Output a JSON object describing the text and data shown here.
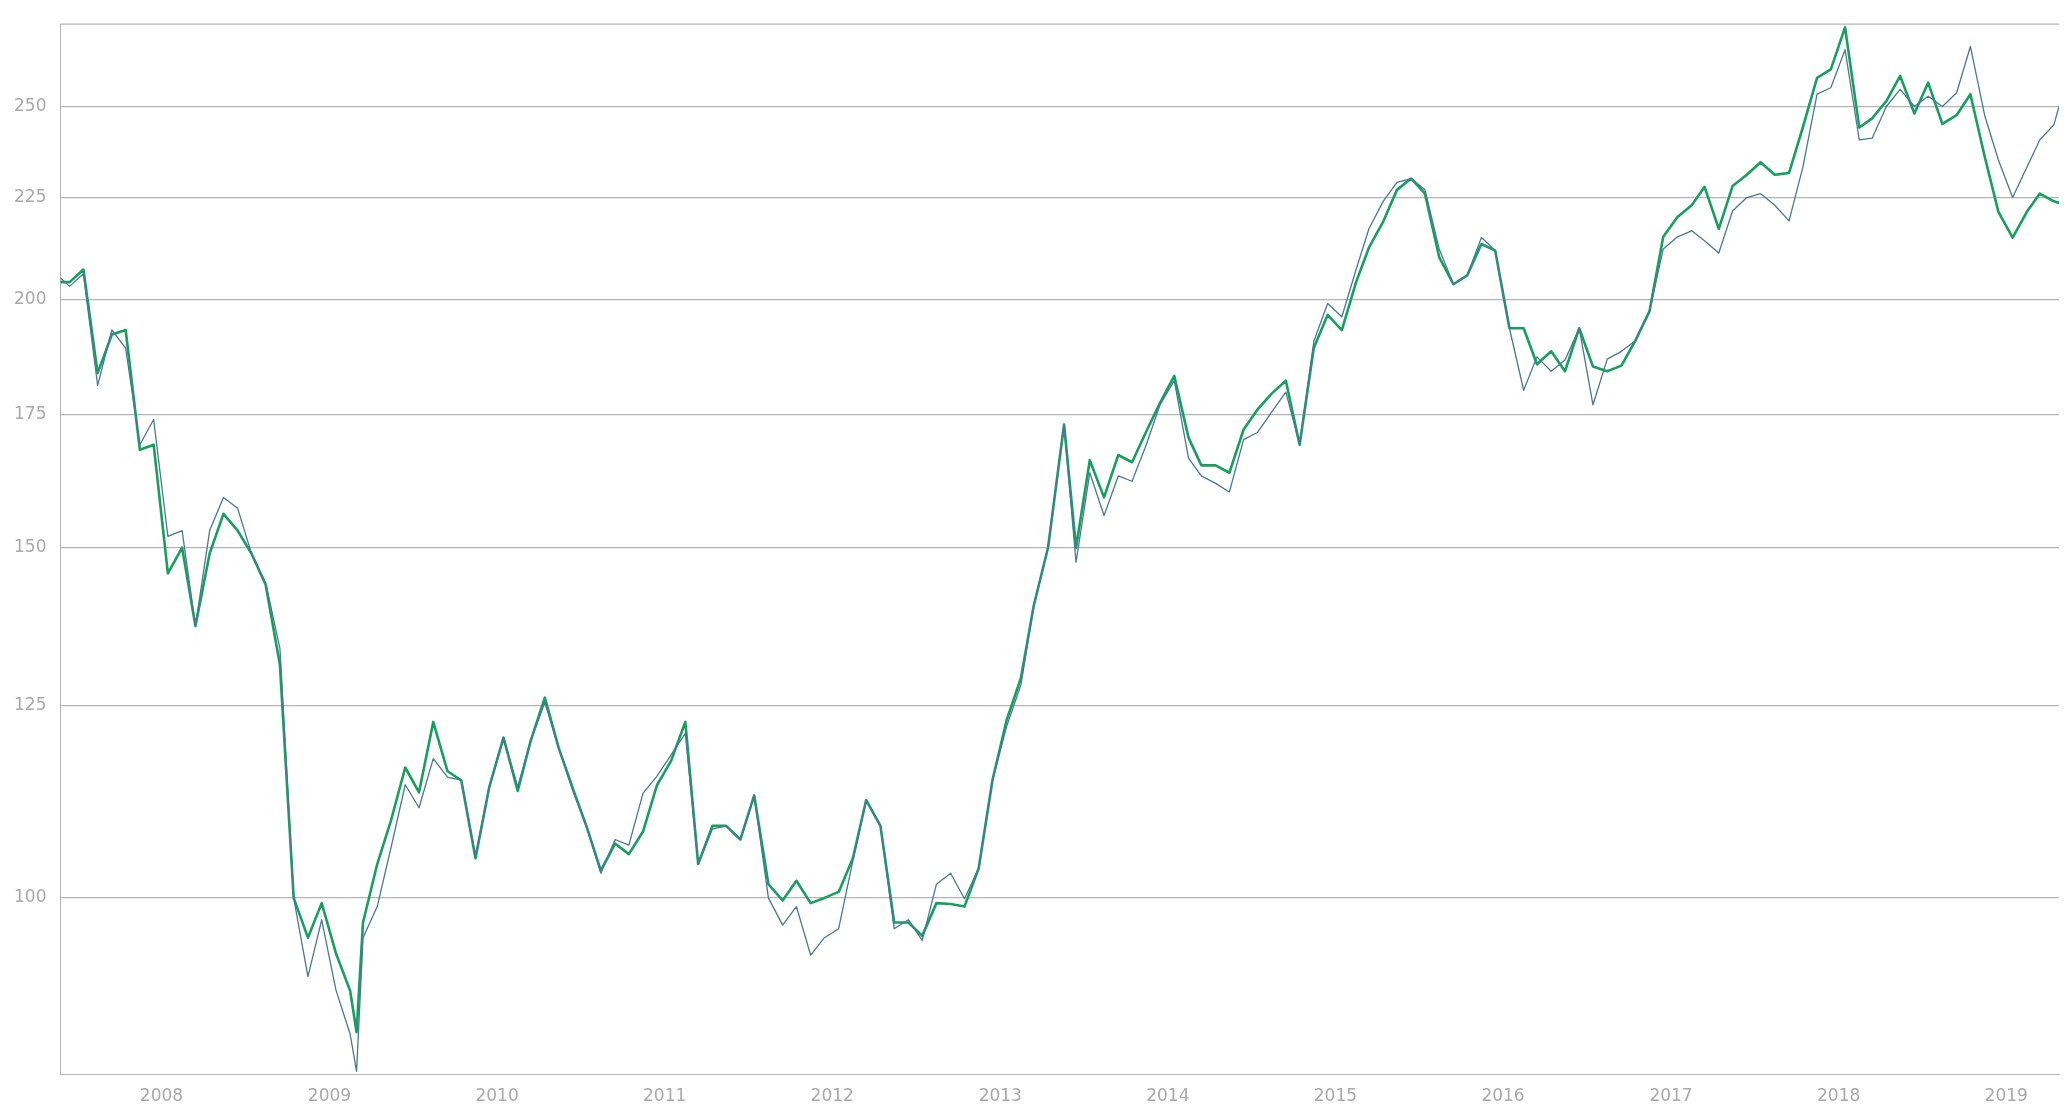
{
  "chart_data": {
    "type": "line",
    "x": [
      "2007-05-26",
      "2007-06-15",
      "2007-07-15",
      "2007-08-15",
      "2007-09-15",
      "2007-10-15",
      "2007-11-15",
      "2007-12-15",
      "2008-01-15",
      "2008-02-15",
      "2008-03-15",
      "2008-04-15",
      "2008-05-15",
      "2008-06-15",
      "2008-07-15",
      "2008-08-15",
      "2008-09-15",
      "2008-10-15",
      "2008-11-15",
      "2008-12-15",
      "2009-01-15",
      "2009-02-15",
      "2009-03-01",
      "2009-03-15",
      "2009-04-15",
      "2009-05-15",
      "2009-06-15",
      "2009-07-15",
      "2009-08-15",
      "2009-09-15",
      "2009-10-15",
      "2009-11-15",
      "2009-12-15",
      "2010-01-15",
      "2010-02-15",
      "2010-03-15",
      "2010-04-15",
      "2010-05-15",
      "2010-06-15",
      "2010-07-15",
      "2010-08-15",
      "2010-09-15",
      "2010-10-15",
      "2010-11-15",
      "2010-12-15",
      "2011-01-15",
      "2011-02-15",
      "2011-03-15",
      "2011-04-15",
      "2011-05-15",
      "2011-06-15",
      "2011-07-15",
      "2011-08-15",
      "2011-09-15",
      "2011-10-15",
      "2011-11-15",
      "2011-12-15",
      "2012-01-15",
      "2012-02-15",
      "2012-03-15",
      "2012-04-15",
      "2012-05-15",
      "2012-06-15",
      "2012-07-15",
      "2012-08-15",
      "2012-09-15",
      "2012-10-15",
      "2012-11-15",
      "2012-12-15",
      "2013-01-15",
      "2013-02-15",
      "2013-03-15",
      "2013-04-15",
      "2013-05-20",
      "2013-06-15",
      "2013-07-15",
      "2013-08-15",
      "2013-09-15",
      "2013-10-15",
      "2013-11-15",
      "2013-12-15",
      "2014-01-15",
      "2014-02-15",
      "2014-03-15",
      "2014-04-15",
      "2014-05-15",
      "2014-06-15",
      "2014-07-15",
      "2014-08-15",
      "2014-09-15",
      "2014-10-15",
      "2014-11-15",
      "2014-12-15",
      "2015-01-15",
      "2015-02-15",
      "2015-03-15",
      "2015-04-15",
      "2015-05-15",
      "2015-06-15",
      "2015-07-15",
      "2015-08-15",
      "2015-09-15",
      "2015-10-15",
      "2015-11-15",
      "2015-12-15",
      "2016-01-15",
      "2016-02-15",
      "2016-03-15",
      "2016-04-15",
      "2016-05-15",
      "2016-06-15",
      "2016-07-15",
      "2016-08-15",
      "2016-09-15",
      "2016-10-15",
      "2016-11-15",
      "2016-12-15",
      "2017-01-15",
      "2017-02-15",
      "2017-03-15",
      "2017-04-15",
      "2017-05-15",
      "2017-06-15",
      "2017-07-15",
      "2017-08-15",
      "2017-09-15",
      "2017-10-15",
      "2017-11-15",
      "2017-12-15",
      "2018-01-15",
      "2018-02-15",
      "2018-03-15",
      "2018-04-15",
      "2018-05-15",
      "2018-06-15",
      "2018-07-15",
      "2018-08-15",
      "2018-09-15",
      "2018-10-15",
      "2018-11-15",
      "2018-12-15",
      "2019-01-15",
      "2019-02-15",
      "2019-03-15",
      "2019-04-15",
      "2019-04-26"
    ],
    "series": [
      {
        "color": "#17a05d",
        "values": [
          204,
          204,
          207,
          183.6,
          192,
          193,
          168,
          169,
          145.6,
          150,
          137,
          149,
          156,
          153,
          149,
          143.7,
          131,
          100,
          95.5,
          99.4,
          93.8,
          89.8,
          85.6,
          97.2,
          104,
          109.4,
          116.3,
          113,
          122.6,
          115.8,
          114.6,
          104.7,
          113.7,
          120.4,
          113.2,
          119.9,
          126.1,
          119,
          113.5,
          108.6,
          103.2,
          106.5,
          105.2,
          108,
          113.9,
          117.2,
          122.6,
          104,
          108.7,
          108.7,
          107,
          112.6,
          101.6,
          99.7,
          102,
          99.4,
          100,
          100.7,
          104.7,
          112,
          108.7,
          97.2,
          97.2,
          95.7,
          99.4,
          99.3,
          99,
          103.5,
          114.6,
          122.9,
          129,
          140.3,
          150,
          173,
          150,
          166,
          159,
          167,
          165.6,
          171.6,
          177.4,
          183,
          170.4,
          165,
          165,
          163.6,
          172,
          176,
          179.3,
          182,
          169,
          189.1,
          196.4,
          193,
          204,
          212.3,
          218.8,
          227,
          230,
          226,
          210,
          203.5,
          205.6,
          213.2,
          211.6,
          193.4,
          193.4,
          185.5,
          188.3,
          184,
          193.4,
          185,
          184,
          185.2,
          190.6,
          197.2,
          215,
          220,
          223,
          227.8,
          217,
          228,
          231,
          234.4,
          231,
          231.5,
          244,
          258.4,
          261,
          274,
          244,
          246.6,
          251.6,
          259,
          248,
          257,
          245,
          247.5,
          253.6,
          236,
          221.3,
          214.8,
          221.3,
          226,
          224,
          223.6
        ]
      },
      {
        "color": "#4a7796",
        "values": [
          205,
          203,
          206,
          181,
          193,
          189,
          169,
          174,
          152,
          153,
          137,
          153,
          159,
          157,
          149,
          144,
          133.5,
          100,
          91.3,
          97.5,
          89.9,
          85.4,
          81.8,
          95.5,
          99,
          106,
          114,
          111,
          117.5,
          115,
          114.6,
          105,
          113.7,
          120.4,
          113.7,
          119.9,
          125.4,
          119,
          113.2,
          108.6,
          102.9,
          107,
          106.3,
          112.9,
          115.1,
          118,
          121,
          104,
          108.3,
          108.7,
          107,
          112.6,
          100,
          96.9,
          99,
          93.6,
          95.5,
          96.5,
          104.4,
          112,
          108.7,
          96.5,
          97.5,
          95.2,
          101.6,
          102.9,
          99.9,
          103.5,
          114.6,
          122,
          128,
          140.3,
          150,
          173,
          147.5,
          163.6,
          155.7,
          163,
          162,
          169,
          177,
          182,
          166.4,
          163,
          161.6,
          160,
          170,
          171.4,
          175.5,
          179.6,
          169,
          190.5,
          199,
          196,
          207,
          217,
          224,
          229,
          230,
          227,
          212,
          203.5,
          205.6,
          214.8,
          211.6,
          193.4,
          180,
          187.1,
          184,
          186.4,
          193.4,
          177,
          186.6,
          188.3,
          190.6,
          197.2,
          212,
          215,
          216.5,
          214,
          211,
          221.5,
          225,
          226,
          223,
          219,
          233,
          253.6,
          255.5,
          267,
          240.5,
          241,
          250,
          255,
          250,
          253,
          250,
          254,
          268,
          247.5,
          235,
          225,
          233,
          240.5,
          244.8,
          250
        ]
      }
    ],
    "xlim": [
      "2007-05-26",
      "2019-04-26"
    ],
    "xticks": [
      "2008",
      "2009",
      "2010",
      "2011",
      "2012",
      "2013",
      "2014",
      "2015",
      "2016",
      "2017",
      "2018",
      "2019"
    ],
    "ylim": [
      81.5,
      275
    ],
    "yticks": [
      100,
      125,
      150,
      175,
      200,
      225,
      250
    ],
    "log": "y",
    "grid": "y",
    "legend": false,
    "marker": "none"
  }
}
